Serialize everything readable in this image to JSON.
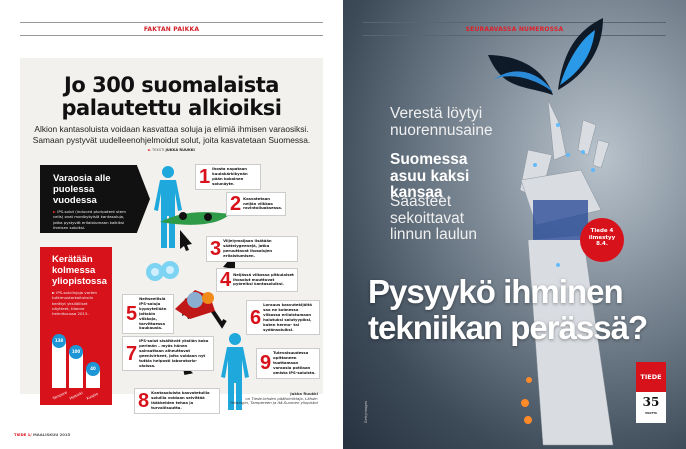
{
  "left_page": {
    "section_label": "FAKTAN PAIKKA",
    "title_line1": "Jo 300 suomalaista",
    "title_line2": "palautettu alkioiksi",
    "subtitle_line1": "Alkion kantasoluista voidaan kasvattaa soluja ja elimiä ihmisen varaosiksi.",
    "subtitle_line2": "Samaan pystyvät uudelleenohjelmoidut solut, joita kasvatetaan Suomessa.",
    "byline_prefix": "TEKSTI",
    "byline_author": "JUKKA RUUKKI",
    "black_box": {
      "heading": "Varaosia alle puolessa vuodessa",
      "text": "iPS-solut (induced pluripotent stem cells) ovat monikykyisiä kantasoluja, jotka pystyvät erilaistumaan kaikiksi ihmisen soluiksi."
    },
    "red_box": {
      "heading": "Kerätään kolmessa yliopistossa",
      "text": "iPS-solulinjoja varten tutkimustarkoituksiin kerätyt yksilölliset näytteet, tilanne helmikuussa 2015.",
      "bars": [
        {
          "city": "Tampere",
          "value": 138
        },
        {
          "city": "Helsinki",
          "value": 100
        },
        {
          "city": "Kuopio",
          "value": 40
        }
      ]
    },
    "steps": [
      {
        "n": "1",
        "text": "Ihosta napataan kuulakärkikynän pään kokoinen solunäyte."
      },
      {
        "n": "2",
        "text": "Kasvatetaan neljän viikkoa ravintoliuoksessa."
      },
      {
        "n": "3",
        "text": "Viljelymaljaan lisätään säätelygeenejä, jotka peruuttavat ihosolujen erilaistumisen."
      },
      {
        "n": "4",
        "text": "Neljässä viikossa pitkulaiset ihosolut muuttuvat pyöreiksi kantasoluiksi."
      },
      {
        "n": "5",
        "text": "Neitseellisiä iPS-soluja kypsytellään joitakin viikkoja, tarvittaessa kuukausia."
      },
      {
        "n": "6",
        "text": "Lorauus kasvutekijöitä saa ne kolmessa viikossa erilaistumaan halutuksi solutyypiksi, kuten hermo- tai sydänsoluiksi."
      },
      {
        "n": "7",
        "text": "iPS-solut sisältävät yksilön koko perimän – myös hänen sairauttaan aiheuttavat geenivirheet, joita voidaan nyt tutkia helposti laboratorio-oloissa."
      },
      {
        "n": "8",
        "text": "Kantasoluista kasvatetuilla soluilla voidaan selvittää lääkkeiden tehoa ja turvallisuutta."
      },
      {
        "n": "9",
        "text": "Tulevaisuudessa opittaneen tuottamaan varaosia potilaan omista iPS-soluista."
      }
    ],
    "credit_name": "Jukka Ruukki",
    "credit_text": "on Tiede-lehden päätoimittaja. Lähde: Helsingin, Tampereen ja Itä-Suomen yliopistot",
    "footer_brand": "TIEDE 1/",
    "footer_issue": "MAALISKUU 2015"
  },
  "right_page": {
    "section_label": "SEURAAVASSA NUMEROSSA",
    "teaser1": "Verestä löytyi nuorennusaine",
    "teaser2": "Suomessa asuu kaksi kansaa",
    "teaser3": "Saasteet sekoittavat linnun laulun",
    "badge": "Tiede 4 ilmestyy 8.4.",
    "cover_title_line1": "Pysyykö ihminen",
    "cover_title_line2": "tekniikan perässä?",
    "logo_brand": "TIEDE",
    "logo_number": "35",
    "logo_sub": "VUOTTA",
    "photo_credit": "Gettyimages"
  },
  "colors": {
    "accent": "#d8121b",
    "figure": "#1fa8dc",
    "panel": "#f3f1ee"
  }
}
